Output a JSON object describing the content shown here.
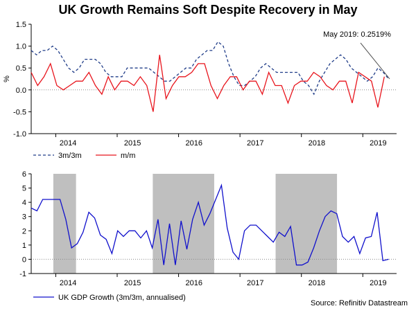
{
  "title": "UK Growth Remains Soft Despite Recovery in May",
  "source": "Source: Refinitiv Datastream",
  "chart_data": [
    {
      "type": "line",
      "ylabel": "%",
      "ylim": [
        -1.0,
        1.5
      ],
      "yticks": [
        -1.0,
        -0.5,
        0.0,
        0.5,
        1.0,
        1.5
      ],
      "xticks": [
        "2014",
        "2015",
        "2016",
        "2017",
        "2018",
        "2019"
      ],
      "annotation": "May 2019: 0.2519%",
      "series": [
        {
          "name": "3m/3m",
          "color": "#1f3c88",
          "style": "dashed",
          "values": [
            0.9,
            0.8,
            0.9,
            0.9,
            1.0,
            0.9,
            0.7,
            0.5,
            0.4,
            0.5,
            0.7,
            0.7,
            0.7,
            0.6,
            0.4,
            0.3,
            0.3,
            0.3,
            0.5,
            0.5,
            0.5,
            0.5,
            0.5,
            0.4,
            0.3,
            0.2,
            0.2,
            0.3,
            0.4,
            0.5,
            0.5,
            0.7,
            0.8,
            0.9,
            0.9,
            1.1,
            1.0,
            0.6,
            0.3,
            0.1,
            0.1,
            0.2,
            0.3,
            0.5,
            0.6,
            0.5,
            0.4,
            0.4,
            0.4,
            0.4,
            0.4,
            0.2,
            0.1,
            -0.1,
            0.2,
            0.4,
            0.6,
            0.7,
            0.8,
            0.7,
            0.5,
            0.4,
            0.3,
            0.2,
            0.3,
            0.5,
            0.4,
            0.2519
          ]
        },
        {
          "name": "m/m",
          "color": "#e8141c",
          "style": "solid",
          "values": [
            0.4,
            0.1,
            0.3,
            0.6,
            0.1,
            0.0,
            0.1,
            0.2,
            0.2,
            0.4,
            0.1,
            -0.1,
            0.3,
            0.0,
            0.2,
            0.2,
            0.1,
            0.3,
            0.1,
            -0.5,
            0.8,
            -0.2,
            0.1,
            0.3,
            0.3,
            0.4,
            0.6,
            0.6,
            0.1,
            -0.2,
            0.1,
            0.3,
            0.3,
            0.0,
            0.2,
            0.2,
            -0.1,
            0.4,
            0.1,
            0.1,
            -0.3,
            0.1,
            0.2,
            0.2,
            0.4,
            0.3,
            0.1,
            0.0,
            0.2,
            0.2,
            -0.3,
            0.4,
            0.3,
            0.2,
            -0.4,
            0.3
          ]
        }
      ]
    },
    {
      "type": "line",
      "ylim": [
        -1,
        6
      ],
      "yticks": [
        -1,
        0,
        1,
        2,
        3,
        4,
        5,
        6
      ],
      "xticks": [
        "2014",
        "2015",
        "2016",
        "2017",
        "2018",
        "2019"
      ],
      "shaded_ranges": [
        [
          2013.96,
          2014.33
        ],
        [
          2015.58,
          2016.58
        ],
        [
          2017.58,
          2018.58
        ]
      ],
      "series": [
        {
          "name": "UK GDP Growth (3m/3m, annualised)",
          "color": "#1010cc",
          "style": "solid",
          "values": [
            3.6,
            3.4,
            4.2,
            4.2,
            4.2,
            4.2,
            2.8,
            0.8,
            1.1,
            1.9,
            3.3,
            2.9,
            1.7,
            1.4,
            0.4,
            2.0,
            1.6,
            2.0,
            2.0,
            1.5,
            2.0,
            0.8,
            2.8,
            -0.4,
            2.5,
            -0.4,
            2.7,
            0.7,
            2.8,
            4.0,
            2.4,
            3.2,
            4.2,
            5.2,
            2.2,
            0.5,
            0.0,
            2.0,
            2.4,
            2.4,
            2.0,
            1.6,
            1.2,
            1.9,
            1.6,
            2.3,
            -0.4,
            -0.4,
            -0.2,
            0.8,
            2.0,
            3.0,
            3.4,
            3.2,
            1.6,
            1.2,
            1.6,
            0.4,
            1.5,
            1.6,
            3.3,
            -0.1,
            0.0
          ]
        }
      ]
    }
  ]
}
